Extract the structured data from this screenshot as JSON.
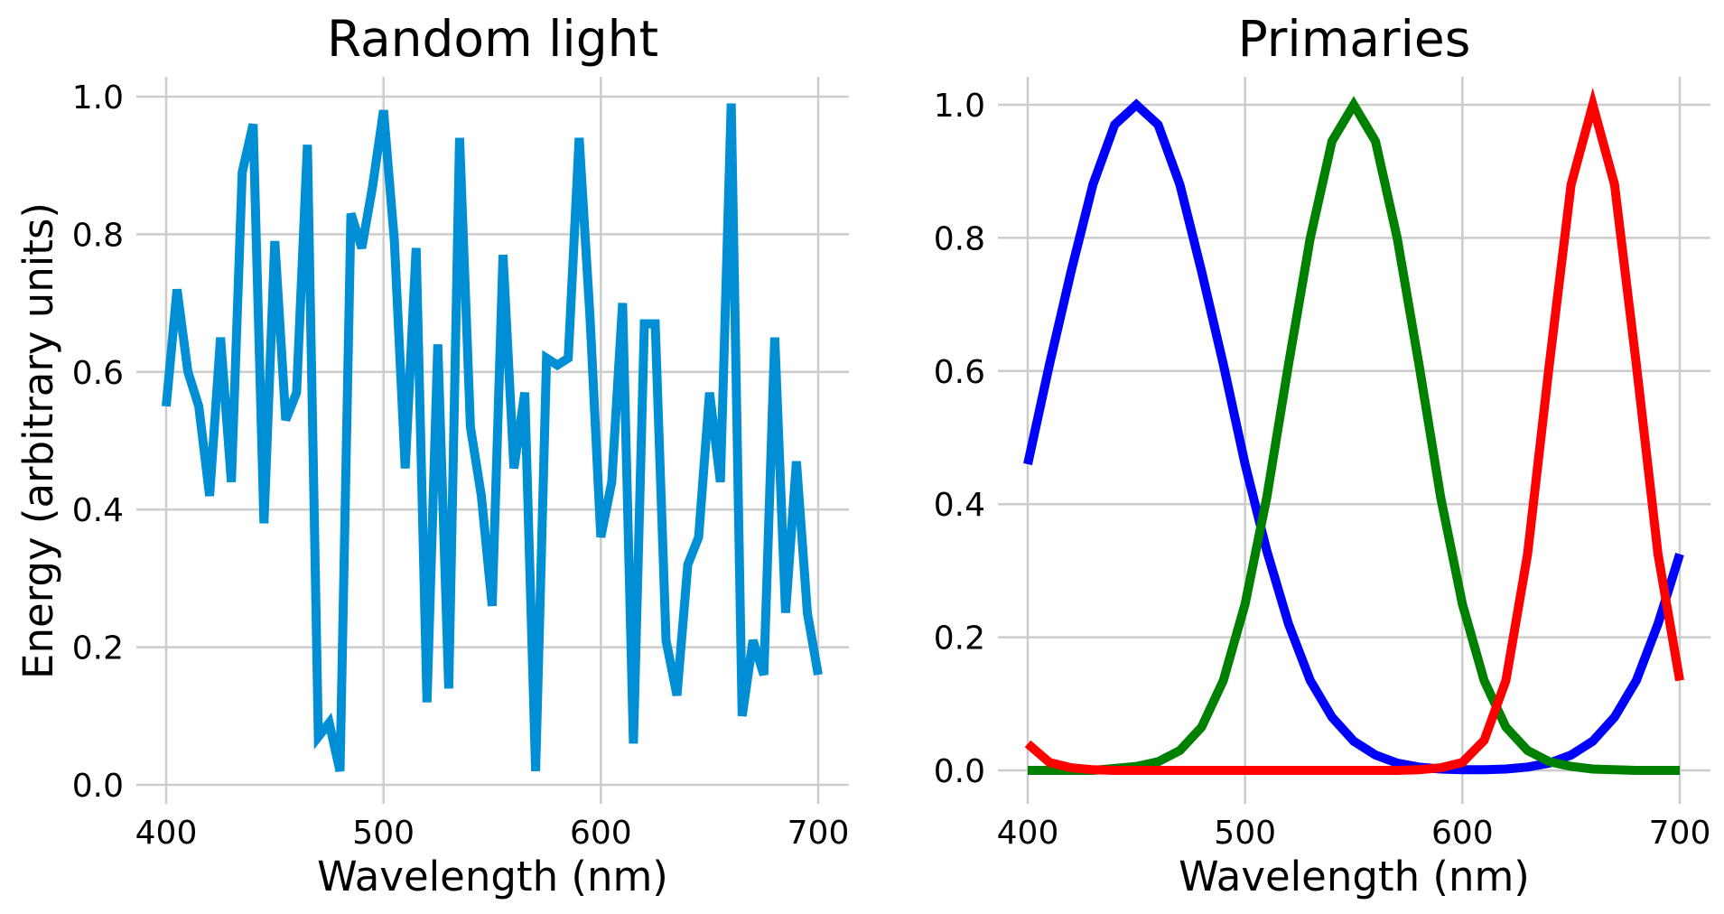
{
  "chart_data": [
    {
      "type": "line",
      "title": "Random light",
      "xlabel": "Wavelength (nm)",
      "ylabel": "Energy (arbitrary units)",
      "xlim": [
        400,
        700
      ],
      "ylim": [
        0,
        1.0
      ],
      "grid": true,
      "legend": "none",
      "xticks": [
        400,
        500,
        600,
        700
      ],
      "xtick_labels": [
        "400",
        "500",
        "600",
        "700"
      ],
      "yticks": [
        0,
        0.2,
        0.4,
        0.6,
        0.8,
        1.0
      ],
      "ytick_labels": [
        "0.0",
        "0.2",
        "0.4",
        "0.6",
        "0.8",
        "1.0"
      ],
      "x": [
        400,
        405,
        410,
        415,
        420,
        425,
        430,
        435,
        440,
        445,
        450,
        455,
        460,
        465,
        470,
        475,
        480,
        485,
        490,
        495,
        500,
        505,
        510,
        515,
        520,
        525,
        530,
        535,
        540,
        545,
        550,
        555,
        560,
        565,
        570,
        575,
        580,
        585,
        590,
        595,
        600,
        605,
        610,
        615,
        620,
        625,
        630,
        635,
        640,
        645,
        650,
        655,
        660,
        665,
        670,
        675,
        680,
        685,
        690,
        695,
        700
      ],
      "series": [
        {
          "color": "#008fd5",
          "values": [
            0.55,
            0.72,
            0.6,
            0.55,
            0.42,
            0.65,
            0.44,
            0.89,
            0.96,
            0.38,
            0.79,
            0.53,
            0.57,
            0.93,
            0.07,
            0.09,
            0.02,
            0.83,
            0.78,
            0.87,
            0.98,
            0.79,
            0.46,
            0.78,
            0.12,
            0.64,
            0.14,
            0.94,
            0.52,
            0.42,
            0.26,
            0.77,
            0.46,
            0.57,
            0.02,
            0.62,
            0.61,
            0.62,
            0.94,
            0.68,
            0.36,
            0.44,
            0.7,
            0.06,
            0.67,
            0.67,
            0.21,
            0.13,
            0.32,
            0.36,
            0.57,
            0.44,
            0.99,
            0.1,
            0.21,
            0.16,
            0.65,
            0.25,
            0.47,
            0.25,
            0.16
          ]
        }
      ]
    },
    {
      "type": "line",
      "title": "Primaries",
      "xlabel": "Wavelength (nm)",
      "ylabel": "",
      "xlim": [
        400,
        700
      ],
      "ylim": [
        0,
        1.0
      ],
      "grid": true,
      "legend": "none",
      "xticks": [
        400,
        500,
        600,
        700
      ],
      "xtick_labels": [
        "400",
        "500",
        "600",
        "700"
      ],
      "yticks": [
        0,
        0.2,
        0.4,
        0.6,
        0.8,
        1.0
      ],
      "ytick_labels": [
        "0.0",
        "0.2",
        "0.4",
        "0.6",
        "0.8",
        "1.0"
      ],
      "x": [
        400,
        410,
        420,
        430,
        440,
        450,
        460,
        470,
        480,
        490,
        500,
        510,
        520,
        530,
        540,
        550,
        560,
        570,
        580,
        590,
        600,
        610,
        620,
        630,
        640,
        650,
        660,
        670,
        680,
        690,
        700
      ],
      "series": [
        {
          "color": "#0000ff",
          "values": [
            0.46,
            0.61,
            0.75,
            0.88,
            0.97,
            1.0,
            0.97,
            0.88,
            0.75,
            0.61,
            0.46,
            0.33,
            0.22,
            0.135,
            0.08,
            0.044,
            0.023,
            0.011,
            0.005,
            0.002,
            0.001,
            0.001,
            0.002,
            0.005,
            0.011,
            0.023,
            0.044,
            0.08,
            0.135,
            0.22,
            0.325
          ]
        },
        {
          "color": "#008000",
          "values": [
            0.0,
            0.0,
            0.0,
            0.0,
            0.003,
            0.006,
            0.013,
            0.03,
            0.065,
            0.135,
            0.25,
            0.41,
            0.61,
            0.8,
            0.945,
            1.0,
            0.945,
            0.8,
            0.61,
            0.41,
            0.25,
            0.135,
            0.065,
            0.03,
            0.013,
            0.006,
            0.002,
            0.001,
            0.0,
            0.0,
            0.0
          ]
        },
        {
          "color": "#ff0000",
          "values": [
            0.04,
            0.012,
            0.004,
            0.001,
            0.0,
            0.0,
            0.0,
            0.0,
            0.0,
            0.0,
            0.0,
            0.0,
            0.0,
            0.0,
            0.0,
            0.0,
            0.0,
            0.0,
            0.001,
            0.004,
            0.012,
            0.045,
            0.135,
            0.325,
            0.61,
            0.88,
            1.0,
            0.88,
            0.61,
            0.325,
            0.135
          ]
        }
      ]
    }
  ]
}
